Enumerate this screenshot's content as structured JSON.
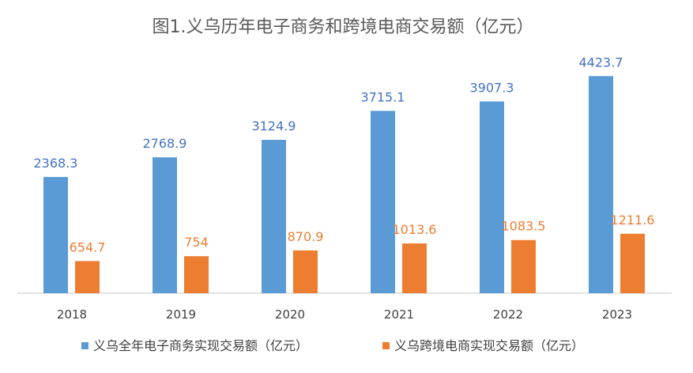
{
  "chart_data": {
    "type": "bar",
    "title": "图1.义乌历年电子商务和跨境电商交易额（亿元）",
    "categories": [
      "2018",
      "2019",
      "2020",
      "2021",
      "2022",
      "2023"
    ],
    "series": [
      {
        "name": "义乌全年电子商务实现交易额（亿元）",
        "values": [
          2368.3,
          2768.9,
          3124.9,
          3715.1,
          3907.3,
          4423.7
        ],
        "labels": [
          "2368.3",
          "2768.9",
          "3124.9",
          "3715.1",
          "3907.3",
          "4423.7"
        ],
        "color": "#5B9BD5",
        "label_color": "#4472C4"
      },
      {
        "name": "义乌跨境电商实现交易额（亿元）",
        "values": [
          654.7,
          754,
          870.9,
          1013.6,
          1083.5,
          1211.6
        ],
        "labels": [
          "654.7",
          "754",
          "870.9",
          "1013.6",
          "1083.5",
          "1211.6"
        ],
        "color": "#ED7D31",
        "label_color": "#ED7D31"
      }
    ],
    "xlabel": "",
    "ylabel": "",
    "ylim": [
      0,
      5000
    ],
    "grid": false,
    "legend": "bottom"
  }
}
